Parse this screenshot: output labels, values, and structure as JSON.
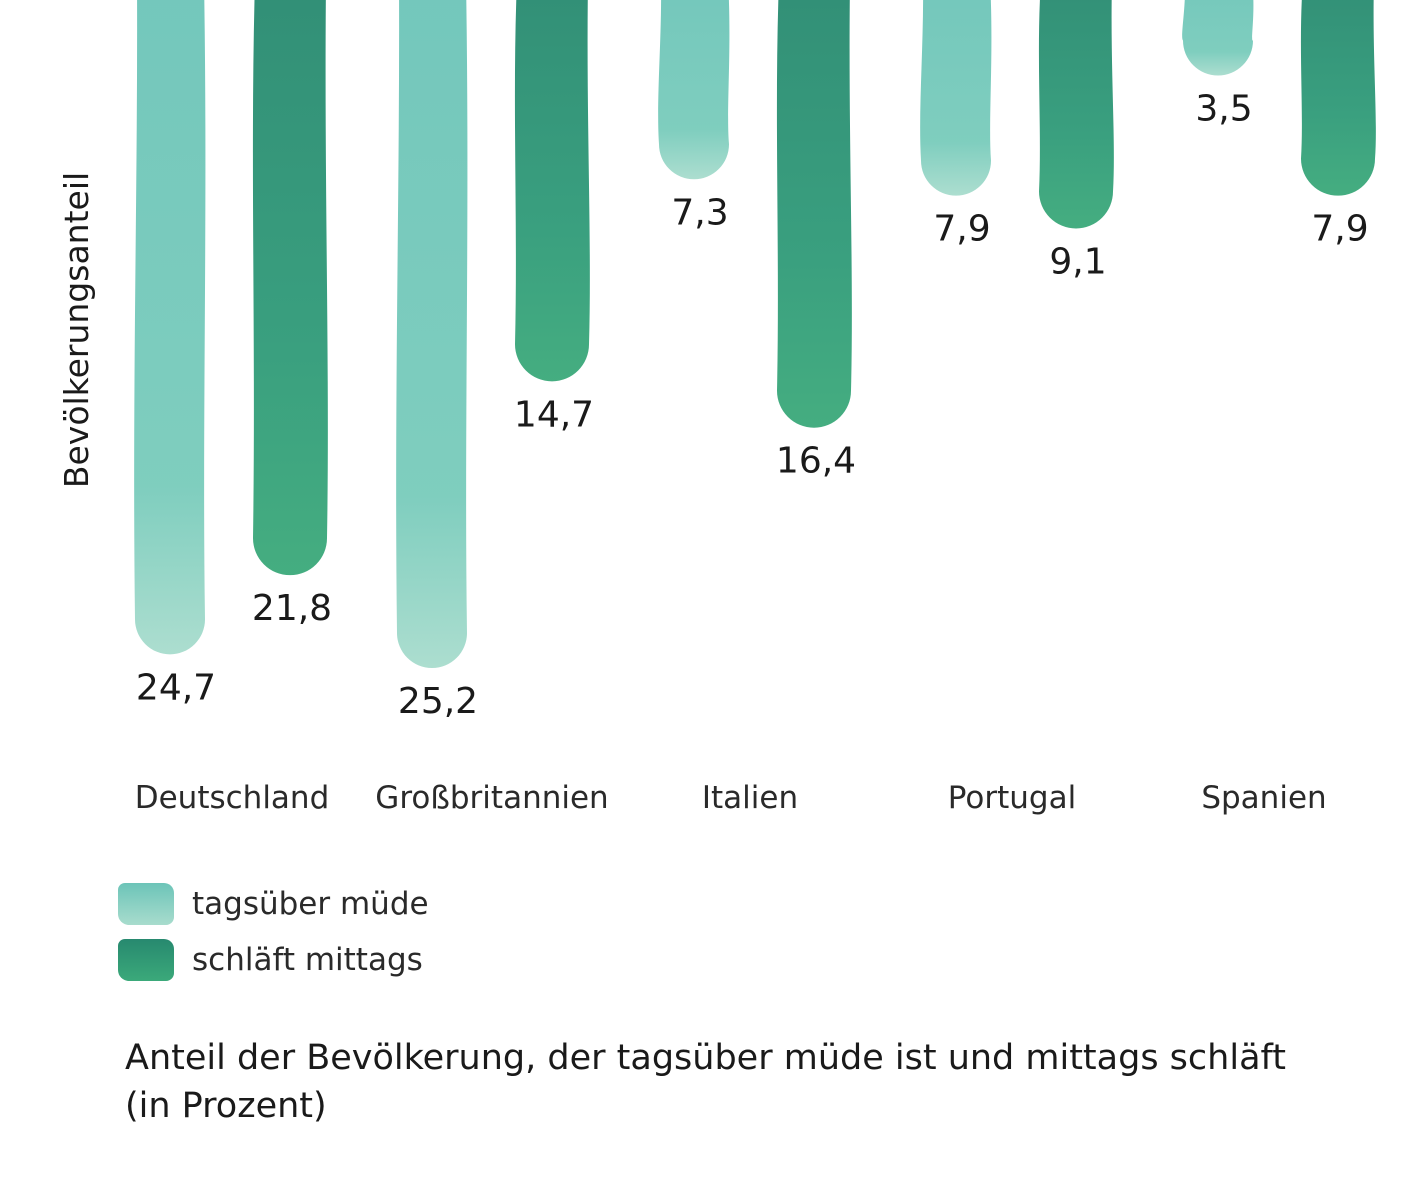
{
  "chart_data": {
    "type": "bar",
    "orientation": "hanging-vertical",
    "ylabel": "Bevölkerungsanteil",
    "categories": [
      "Deutschland",
      "Großbritannien",
      "Italien",
      "Portugal",
      "Spanien"
    ],
    "series": [
      {
        "name": "tagsüber müde",
        "values": [
          24.7,
          25.2,
          7.3,
          7.9,
          3.5
        ],
        "labels": [
          "24,7",
          "25,2",
          "7,3",
          "7,9",
          "3,5"
        ],
        "color": "#7ecdc0"
      },
      {
        "name": "schläft mittags",
        "values": [
          21.8,
          14.7,
          16.4,
          9.1,
          7.9
        ],
        "labels": [
          "21,8",
          "14,7",
          "16,4",
          "9,1",
          "7,9"
        ],
        "color": "#2f9a78"
      }
    ],
    "ylim": [
      0,
      25.2
    ],
    "grid": false,
    "legend_position": "bottom-left",
    "caption": {
      "line1": "Anteil der Bevölkerung, der tagsüber müde ist und mittags schläft",
      "line2": "(in Prozent)"
    }
  },
  "colors": {
    "light_gradient": [
      "#6cc4b8",
      "#a8dccd"
    ],
    "dark_gradient": [
      "#27896f",
      "#3ba97a"
    ]
  }
}
